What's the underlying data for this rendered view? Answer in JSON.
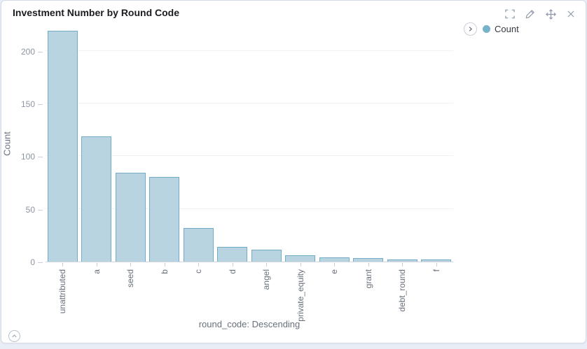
{
  "panel": {
    "title": "Investment Number by Round Code"
  },
  "toolbar": {
    "icons": [
      {
        "name": "fullscreen-icon"
      },
      {
        "name": "edit-icon"
      },
      {
        "name": "move-icon"
      },
      {
        "name": "close-icon"
      }
    ]
  },
  "legend": {
    "label": "Count",
    "dot_color": "#79b2cb"
  },
  "colors": {
    "bar_fill": "#b7d4e0",
    "bar_stroke": "#74abc9",
    "panel_border": "#d3dae6",
    "axis_text": "#69707d",
    "tick_text": "#8d94a2",
    "title_text": "#1a1c21",
    "page_background": "#e9edf6"
  },
  "chart_data": {
    "type": "bar",
    "title": "Investment Number by Round Code",
    "series_name": "Count",
    "categories": [
      "unattributed",
      "a",
      "seed",
      "b",
      "c",
      "d",
      "angel",
      "private_equity",
      "e",
      "grant",
      "debt_round",
      "f"
    ],
    "values": [
      219,
      119,
      84,
      80,
      32,
      14,
      11,
      6,
      4,
      3,
      2,
      2
    ],
    "xlabel": "round_code: Descending",
    "ylabel": "Count",
    "ylim": [
      0,
      225
    ],
    "yticks": [
      0,
      50,
      100,
      150,
      200
    ],
    "grid": true,
    "legend_position": "top-right"
  }
}
